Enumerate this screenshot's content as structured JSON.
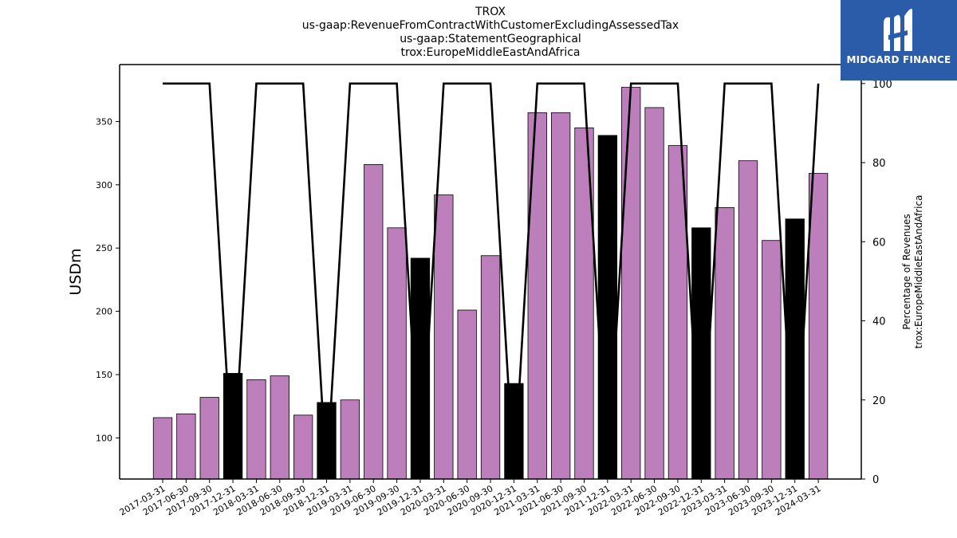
{
  "title_lines": [
    "TROX",
    "us-gaap:RevenueFromContractWithCustomerExcludingAssessedTax",
    "us-gaap:StatementGeographical",
    "trox:EuropeMiddleEastAndAfrica"
  ],
  "logo": {
    "text": "MIDGARD FINANCE",
    "background": "#2a5caa"
  },
  "colors": {
    "bar_default": "#bc7fbc",
    "bar_highlight": "#000000",
    "line": "#000000"
  },
  "chart_data": {
    "type": "bar",
    "categories": [
      "2017-03-31",
      "2017-06-30",
      "2017-09-30",
      "2017-12-31",
      "2018-03-31",
      "2018-06-30",
      "2018-09-30",
      "2018-12-31",
      "2019-03-31",
      "2019-06-30",
      "2019-09-30",
      "2019-12-31",
      "2020-03-31",
      "2020-06-30",
      "2020-09-30",
      "2020-12-31",
      "2021-03-31",
      "2021-06-30",
      "2021-09-30",
      "2021-12-31",
      "2022-03-31",
      "2022-06-30",
      "2022-09-30",
      "2022-12-31",
      "2023-03-31",
      "2023-06-30",
      "2023-09-30",
      "2023-12-31",
      "2024-03-31"
    ],
    "values": [
      116,
      119,
      132,
      151,
      146,
      149,
      118,
      128,
      130,
      316,
      266,
      242,
      292,
      201,
      244,
      143,
      357,
      357,
      345,
      339,
      377,
      361,
      331,
      266,
      282,
      319,
      256,
      273,
      309
    ],
    "highlight": [
      false,
      false,
      false,
      true,
      false,
      false,
      false,
      true,
      false,
      false,
      false,
      true,
      false,
      false,
      false,
      true,
      false,
      false,
      false,
      true,
      false,
      false,
      false,
      true,
      false,
      false,
      false,
      true,
      false
    ],
    "line_series": {
      "values": [
        100,
        100,
        100,
        0,
        100,
        100,
        100,
        0,
        100,
        100,
        100,
        0,
        100,
        100,
        100,
        0,
        100,
        100,
        100,
        0,
        100,
        100,
        100,
        0,
        100,
        100,
        100,
        0,
        100
      ]
    },
    "ylabel": "USDm",
    "y2label_lines": [
      "Percentage of Revenues",
      "trox:EuropeMiddleEastAndAfrica"
    ],
    "ylim": [
      67.5,
      395
    ],
    "y2lim": [
      0,
      104.8
    ],
    "yticks": [
      100,
      150,
      200,
      250,
      300,
      350
    ],
    "y2ticks": [
      0,
      20,
      40,
      60,
      80,
      100
    ]
  }
}
